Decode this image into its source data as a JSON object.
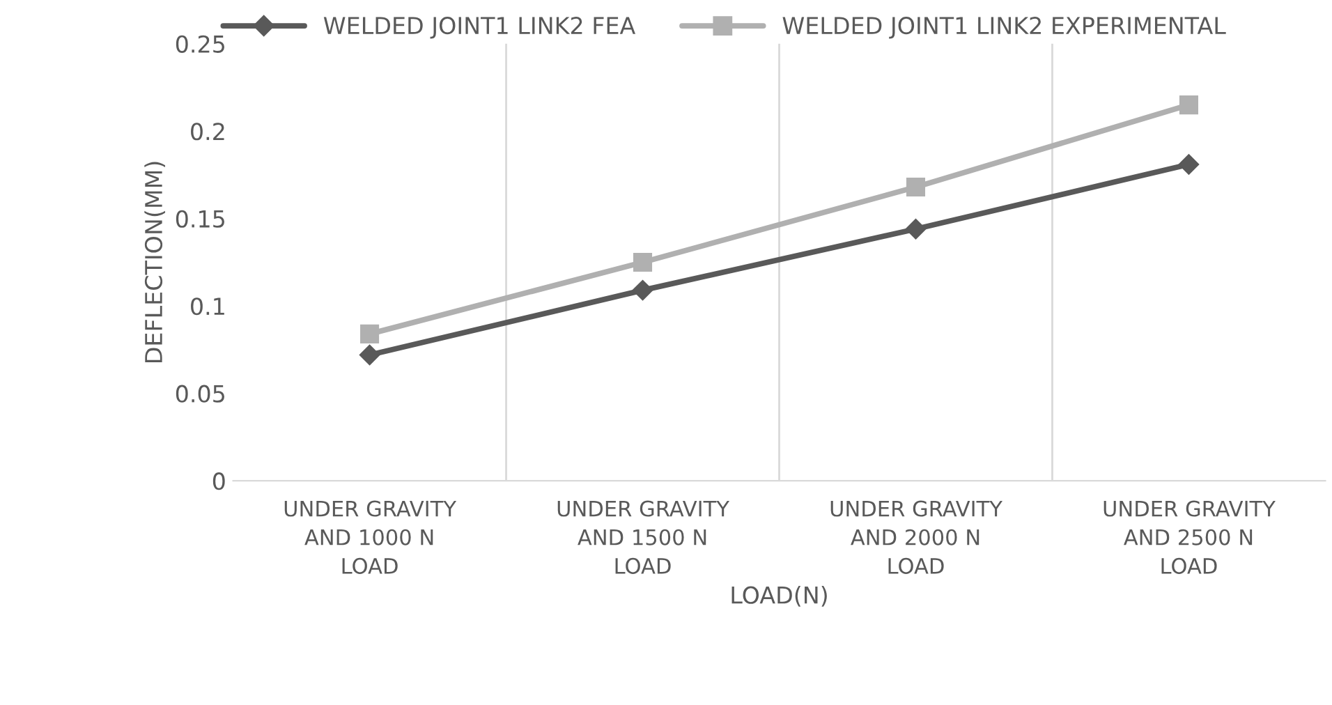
{
  "chart_data": {
    "type": "line",
    "xlabel": "LOAD(N)",
    "ylabel": "DEFLECTION(MM)",
    "categories": [
      "UNDER GRAVITY\nAND 1000 N\nLOAD",
      "UNDER GRAVITY\nAND 1500 N\nLOAD",
      "UNDER GRAVITY\nAND 2000 N\nLOAD",
      "UNDER GRAVITY\nAND 2500 N\nLOAD"
    ],
    "series": [
      {
        "name": "WELDED JOINT1 LINK2 FEA",
        "color": "#595959",
        "marker": "diamond",
        "values": [
          0.072,
          0.109,
          0.144,
          0.181
        ]
      },
      {
        "name": "WELDED JOINT1 LINK2 EXPERIMENTAL",
        "color": "#b0b0b0",
        "marker": "square",
        "values": [
          0.084,
          0.125,
          0.168,
          0.215
        ]
      }
    ],
    "ylim": [
      0,
      0.25
    ],
    "yticks": [
      {
        "value": 0,
        "label": "0"
      },
      0.05,
      0.1,
      0.15,
      0.2,
      0.25
    ],
    "grid": "x",
    "legend": "top",
    "line_style": "solid"
  }
}
